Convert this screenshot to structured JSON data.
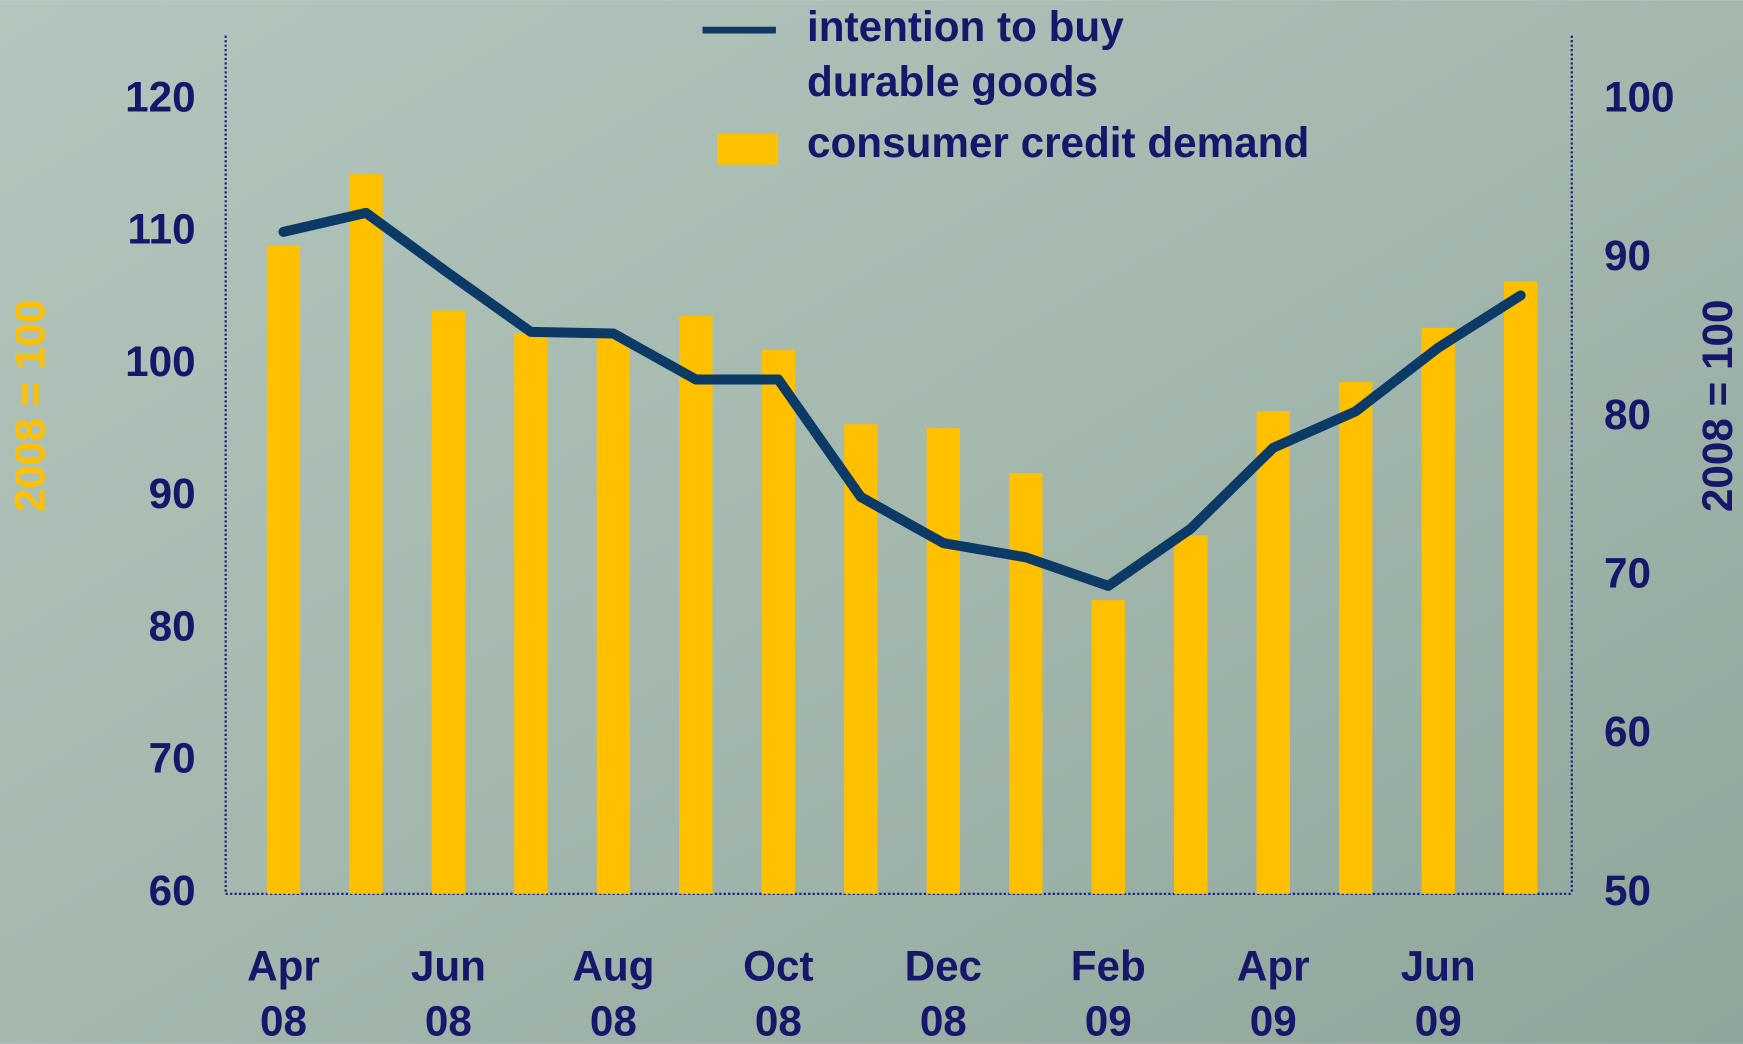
{
  "chart_data": {
    "type": "bar-line",
    "categories": [
      "Apr\n08",
      null,
      "Jun\n08",
      null,
      "Aug\n08",
      null,
      "Oct\n08",
      null,
      "Dec\n08",
      null,
      "Feb\n09",
      null,
      "Apr\n09",
      null,
      "Jun\n09",
      null
    ],
    "series": [
      {
        "name": "consumer credit demand",
        "type": "bar",
        "color": "#ffc000",
        "axis": "y",
        "values": [
          109,
          114.4,
          104.1,
          102.4,
          102,
          103.7,
          101.1,
          95.5,
          95.2,
          91.8,
          82.2,
          87.1,
          96.5,
          98.7,
          102.8,
          106.3
        ]
      },
      {
        "name": "intention to buy\ndurable goods",
        "type": "line",
        "color": "#0b3a66",
        "axis": "y2",
        "values": [
          91.7,
          92.9,
          89.1,
          85.4,
          85.3,
          82.4,
          82.4,
          75.0,
          72.1,
          71.2,
          69.4,
          73.0,
          78.1,
          80.4,
          84.4,
          87.7
        ]
      }
    ],
    "ylabel": "2008 = 100",
    "y2label": "2008 = 100",
    "ylim": [
      60,
      120
    ],
    "yticks": [
      60,
      70,
      80,
      90,
      100,
      110,
      120
    ],
    "y2lim": [
      50,
      100
    ],
    "y2ticks": [
      50,
      60,
      70,
      80,
      90,
      100
    ],
    "grid": false
  }
}
